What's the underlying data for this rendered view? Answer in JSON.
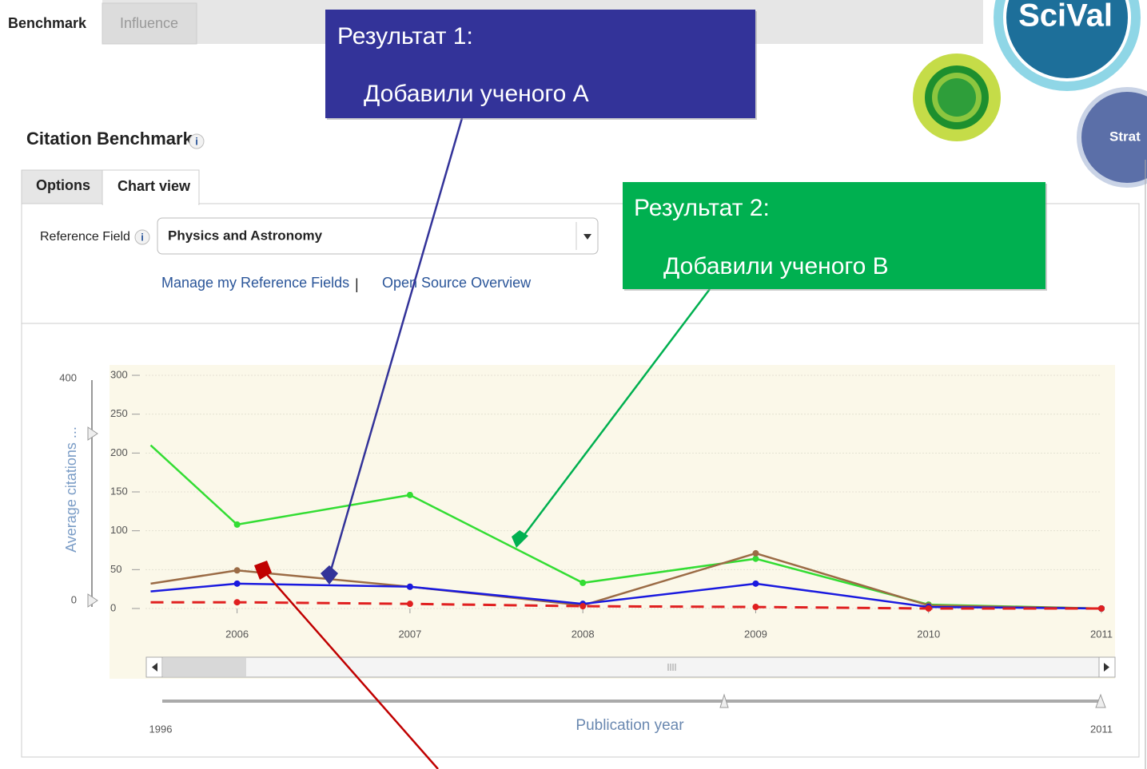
{
  "tabs": [
    "Benchmark",
    "Influence"
  ],
  "section_title": "Citation Benchmark",
  "info_icon": "i",
  "panel_tabs": [
    "Options",
    "Chart view"
  ],
  "reference_field": {
    "label": "Reference Field",
    "value": "Physics and Astronomy"
  },
  "links": [
    "Manage my Reference Fields",
    "|",
    "Open Source Overview"
  ],
  "logo": {
    "name": "SciVal",
    "side": "Strat"
  },
  "callouts": [
    {
      "line1": "Результат 1:",
      "line2": "Добавили ученого  A"
    },
    {
      "line1": "Результат 2:",
      "line2": "Добавили ученого B"
    }
  ],
  "chart_data": {
    "type": "line",
    "y_label": "Average citations ...",
    "x_label": "Publication year",
    "x": [
      2005.5,
      2006,
      2007,
      2008,
      2009,
      2010,
      2011
    ],
    "xlim": [
      2005.47,
      2011
    ],
    "xticks": [
      2006,
      2007,
      2008,
      2009,
      2010,
      2011
    ],
    "ylim": [
      0,
      300
    ],
    "yticks": [
      0,
      50,
      100,
      150,
      200,
      250,
      300
    ],
    "grid": true,
    "y_slider": [
      0,
      400
    ],
    "x_slider": [
      1996,
      2011
    ],
    "series": [
      {
        "color": "#33dd33",
        "values": [
          210,
          108,
          146,
          33,
          64,
          5,
          0
        ]
      },
      {
        "color": "#9b6b45",
        "values": [
          32,
          49,
          28,
          4,
          71,
          4,
          0
        ]
      },
      {
        "color": "#1a1adf",
        "values": [
          22,
          32,
          28,
          6,
          32,
          2,
          0
        ]
      },
      {
        "color": "#e02020",
        "dashed": true,
        "values": [
          8,
          8,
          6,
          3,
          2,
          0,
          0
        ]
      }
    ]
  }
}
